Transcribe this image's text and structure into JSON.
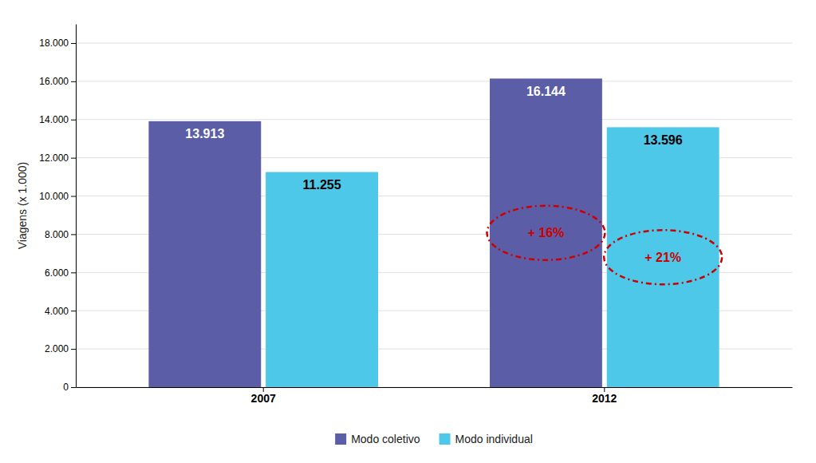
{
  "chart_data": {
    "type": "bar",
    "categories": [
      "2007",
      "2012"
    ],
    "series": [
      {
        "name": "Modo coletivo",
        "color": "#5B5EA6",
        "values": [
          13913,
          16144
        ],
        "value_labels": [
          "13.913",
          "16.144"
        ]
      },
      {
        "name": "Modo individual",
        "color": "#4DC8E8",
        "values": [
          11255,
          13596
        ],
        "value_labels": [
          "11.255",
          "13.596"
        ]
      }
    ],
    "ylabel": "Viagens (x 1.000)",
    "ylim": [
      0,
      19000
    ],
    "yticks": [
      0,
      {
        "value": 2000,
        "label": "2.000"
      },
      {
        "value": 4000,
        "label": "4.000"
      },
      {
        "value": 6000,
        "label": "6.000"
      },
      {
        "value": 8000,
        "label": "8.000"
      },
      {
        "value": 10000,
        "label": "10.000"
      },
      {
        "value": 12000,
        "label": "12.000"
      },
      {
        "value": 14000,
        "label": "14.000"
      },
      {
        "value": 16000,
        "label": "16.000"
      },
      {
        "value": 18000,
        "label": "18.000"
      }
    ],
    "grid": true,
    "legend": "bottom",
    "data_labels": true,
    "annotations": [
      {
        "text": "+ 16%",
        "series": "Modo coletivo",
        "category": "2012",
        "color": "#CC0000"
      },
      {
        "text": "+ 21%",
        "series": "Modo individual",
        "category": "2012",
        "color": "#CC0000"
      }
    ]
  }
}
